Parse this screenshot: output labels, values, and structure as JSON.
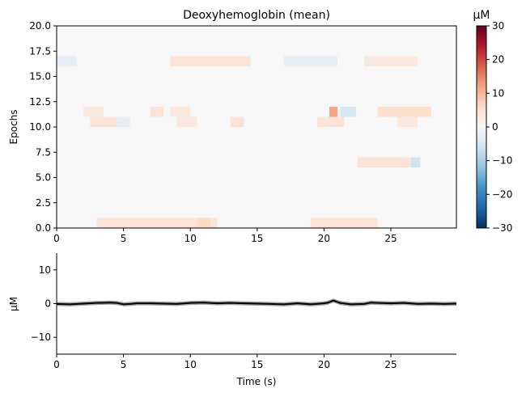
{
  "chart_data": [
    {
      "type": "heatmap",
      "title": "Deoxyhemoglobin (mean)",
      "xlabel": "",
      "ylabel": "Epochs",
      "xlim": [
        0,
        29.9
      ],
      "ylim": [
        0,
        20
      ],
      "xticks": [
        0,
        5,
        10,
        15,
        20,
        25
      ],
      "yticks": [
        "0.0",
        "2.5",
        "5.0",
        "7.5",
        "10.0",
        "12.5",
        "15.0",
        "17.5",
        "20.0"
      ],
      "colorbar": {
        "label": "µM",
        "range": [
          -30,
          30
        ],
        "ticks": [
          -30,
          -20,
          -10,
          0,
          10,
          20,
          30
        ],
        "colormap": "RdBu_r"
      },
      "rows": 20,
      "notable_epochs": [
        {
          "epoch": 10,
          "segments": [
            [
              2.5,
              4.5,
              4
            ],
            [
              4.5,
              5.5,
              -3
            ],
            [
              9,
              10.5,
              3
            ],
            [
              13,
              14,
              4
            ],
            [
              19.5,
              21.5,
              4
            ],
            [
              25.5,
              27,
              3
            ]
          ]
        },
        {
          "epoch": 11,
          "segments": [
            [
              2,
              3.5,
              3
            ],
            [
              7,
              8,
              4
            ],
            [
              8.5,
              10,
              3
            ],
            [
              20.4,
              21.0,
              12
            ],
            [
              21.2,
              22.4,
              -5
            ],
            [
              24,
              28,
              5
            ]
          ]
        },
        {
          "epoch": 6,
          "segments": [
            [
              22.5,
              26.5,
              4
            ],
            [
              26.5,
              27.2,
              -6
            ]
          ]
        },
        {
          "epoch": 16,
          "segments": [
            [
              8.5,
              14.5,
              4
            ],
            [
              0,
              1.5,
              -3
            ],
            [
              17,
              21,
              -3
            ],
            [
              23,
              27,
              3
            ]
          ]
        },
        {
          "epoch": 0,
          "segments": [
            [
              3,
              12,
              4
            ],
            [
              10.5,
              11.5,
              6
            ],
            [
              19,
              24,
              4
            ]
          ]
        }
      ]
    },
    {
      "type": "line",
      "title": "",
      "xlabel": "Time (s)",
      "ylabel": "µM",
      "xlim": [
        0,
        29.9
      ],
      "ylim": [
        -15,
        15
      ],
      "xticks": [
        0,
        5,
        10,
        15,
        20,
        25
      ],
      "yticks": [
        -10,
        0,
        10
      ],
      "series": [
        {
          "x": [
            0,
            1,
            2,
            3,
            4,
            4.5,
            5,
            5.5,
            6,
            7,
            8,
            9,
            10,
            11,
            12,
            13,
            14,
            15,
            16,
            17,
            18,
            19,
            20,
            20.3,
            20.7,
            21.2,
            22,
            23,
            23.5,
            24,
            25,
            26,
            27,
            28,
            29,
            29.9
          ],
          "values": [
            -0.1,
            -0.2,
            0,
            0.2,
            0.3,
            0.2,
            -0.2,
            -0.1,
            0.1,
            0.1,
            0,
            -0.1,
            0.2,
            0.3,
            0.1,
            0.2,
            0.1,
            0,
            -0.1,
            -0.2,
            0.1,
            -0.2,
            0.1,
            0.3,
            0.9,
            0.2,
            -0.2,
            -0.1,
            0.3,
            0.2,
            0.1,
            0.2,
            -0.1,
            0,
            -0.1,
            0
          ],
          "color": "#000000",
          "band_color": "#808080"
        }
      ]
    }
  ]
}
